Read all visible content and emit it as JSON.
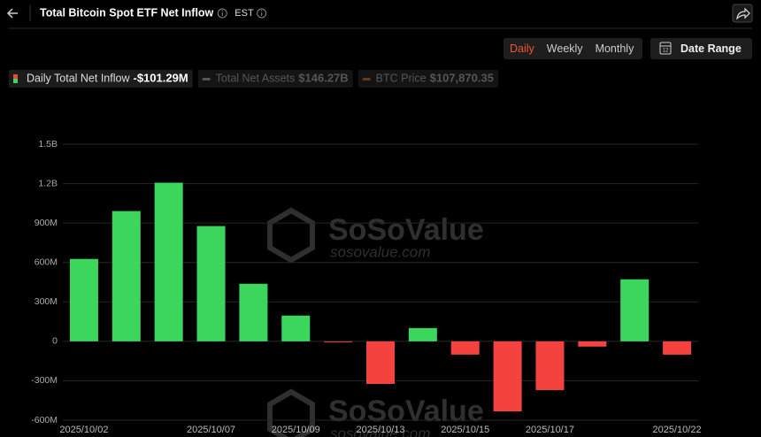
{
  "header": {
    "title": "Total Bitcoin Spot ETF Net Inflow",
    "timezone": "EST"
  },
  "controls": {
    "tabs": [
      "Daily",
      "Weekly",
      "Monthly"
    ],
    "active_tab": "Daily",
    "date_range": "Date Range"
  },
  "legend": [
    {
      "name": "Daily Total Net Inflow",
      "value": "-$101.29M"
    },
    {
      "name": "Total Net Assets",
      "value": "$146.27B"
    },
    {
      "name": "BTC Price",
      "value": "$107,870.35"
    }
  ],
  "watermark": {
    "brand": "SoSoValue",
    "site": "sosovalue.com"
  },
  "chart_data": {
    "type": "bar",
    "categories": [
      "2025/10/02",
      null,
      null,
      "2025/10/07",
      null,
      "2025/10/09",
      null,
      "2025/10/13",
      null,
      "2025/10/15",
      null,
      "2025/10/17",
      null,
      null,
      "2025/10/22"
    ],
    "values": [
      627,
      991,
      1207,
      877,
      438,
      196,
      -4,
      -324,
      101,
      -101,
      -533,
      -371,
      -40,
      472,
      -101.29
    ],
    "colors": {
      "positive": "#3dd65c",
      "negative": "#f4433f"
    },
    "ylim": [
      -600,
      1500
    ],
    "yticks": [
      {
        "value": -600,
        "label": "-600M"
      },
      {
        "value": -300,
        "label": "-300M"
      },
      0,
      {
        "value": 300,
        "label": "300M"
      },
      {
        "value": 600,
        "label": "600M"
      },
      {
        "value": 900,
        "label": "900M"
      },
      {
        "value": 1200,
        "label": "1.2B"
      },
      {
        "value": 1500,
        "label": "1.5B"
      }
    ],
    "grid": true
  }
}
